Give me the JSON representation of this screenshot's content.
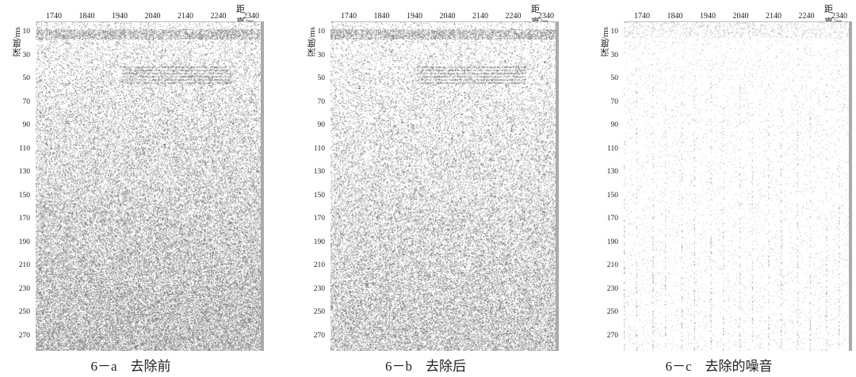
{
  "x_label": "距离/m",
  "y_label": "深度/ms",
  "x_ticks": [
    "1740",
    "1840",
    "1940",
    "2040",
    "2140",
    "2240",
    "2340"
  ],
  "y_ticks": [
    "10",
    "30",
    "50",
    "70",
    "90",
    "110",
    "130",
    "150",
    "170",
    "190",
    "210",
    "230",
    "250",
    "270"
  ],
  "panels": [
    {
      "caption": "6－a　去除前",
      "kind": "raw"
    },
    {
      "caption": "6－b　去除后",
      "kind": "denoised"
    },
    {
      "caption": "6－c　去除的噪音",
      "kind": "noise"
    }
  ]
}
